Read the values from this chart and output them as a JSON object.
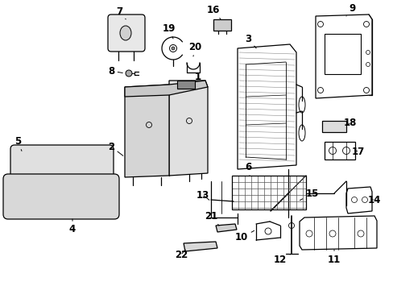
{
  "background_color": "#ffffff",
  "line_color": "#000000",
  "label_color": "#000000",
  "font_size": 8.5,
  "lw": 0.9
}
